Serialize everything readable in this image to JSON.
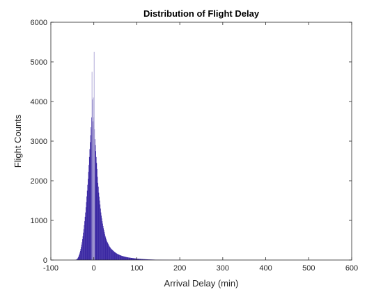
{
  "chart_data": {
    "type": "bar",
    "title": "Distribution of Flight Delay",
    "xlabel": "Arrival Delay (min)",
    "ylabel": "Flight Counts",
    "xlim": [
      -100,
      600
    ],
    "ylim": [
      0,
      6000
    ],
    "xticks": [
      -100,
      0,
      100,
      200,
      300,
      400,
      500,
      600
    ],
    "yticks": [
      0,
      1000,
      2000,
      3000,
      4000,
      5000,
      6000
    ],
    "grid": false,
    "colors": {
      "fill": "#3b28a3",
      "edge": "#4a3aa8",
      "spike": "#b9b3dc",
      "axis": "#262626"
    },
    "bin_width": 1,
    "series": [
      {
        "bins": [
          [
            -45,
            2
          ],
          [
            -42,
            8
          ],
          [
            -40,
            20
          ],
          [
            -38,
            45
          ],
          [
            -36,
            90
          ],
          [
            -34,
            150
          ],
          [
            -32,
            230
          ],
          [
            -30,
            330
          ],
          [
            -28,
            450
          ],
          [
            -26,
            600
          ],
          [
            -24,
            780
          ],
          [
            -22,
            980
          ],
          [
            -20,
            1200
          ],
          [
            -18,
            1460
          ],
          [
            -16,
            1750
          ],
          [
            -14,
            2050
          ],
          [
            -12,
            2400
          ],
          [
            -10,
            2800
          ],
          [
            -8,
            3150
          ],
          [
            -7,
            3350
          ],
          [
            -6,
            3600
          ],
          [
            -5,
            3300
          ],
          [
            -4,
            4050
          ],
          [
            -3,
            3500
          ],
          [
            -2,
            3950
          ],
          [
            -1,
            3600
          ],
          [
            0,
            3400
          ],
          [
            1,
            3300
          ],
          [
            2,
            3050
          ],
          [
            3,
            2900
          ],
          [
            4,
            2750
          ],
          [
            5,
            2600
          ],
          [
            6,
            2450
          ],
          [
            7,
            2300
          ],
          [
            8,
            2100
          ],
          [
            9,
            1950
          ],
          [
            10,
            1850
          ],
          [
            11,
            1700
          ],
          [
            12,
            1600
          ],
          [
            13,
            1500
          ],
          [
            14,
            1400
          ],
          [
            15,
            1300
          ],
          [
            16,
            1200
          ],
          [
            17,
            1120
          ],
          [
            18,
            1050
          ],
          [
            19,
            980
          ],
          [
            20,
            920
          ],
          [
            21,
            860
          ],
          [
            22,
            800
          ],
          [
            23,
            750
          ],
          [
            24,
            700
          ],
          [
            25,
            650
          ],
          [
            26,
            610
          ],
          [
            27,
            570
          ],
          [
            28,
            530
          ],
          [
            29,
            500
          ],
          [
            30,
            470
          ],
          [
            32,
            430
          ],
          [
            34,
            380
          ],
          [
            36,
            340
          ],
          [
            38,
            310
          ],
          [
            40,
            280
          ],
          [
            42,
            260
          ],
          [
            44,
            240
          ],
          [
            46,
            220
          ],
          [
            48,
            200
          ],
          [
            50,
            185
          ],
          [
            52,
            170
          ],
          [
            55,
            150
          ],
          [
            58,
            135
          ],
          [
            61,
            120
          ],
          [
            64,
            108
          ],
          [
            67,
            97
          ],
          [
            70,
            88
          ],
          [
            73,
            80
          ],
          [
            76,
            72
          ],
          [
            80,
            64
          ],
          [
            85,
            56
          ],
          [
            90,
            48
          ],
          [
            95,
            42
          ],
          [
            100,
            36
          ],
          [
            105,
            31
          ],
          [
            110,
            27
          ],
          [
            115,
            23
          ],
          [
            120,
            20
          ],
          [
            125,
            17
          ],
          [
            130,
            14
          ],
          [
            135,
            12
          ],
          [
            140,
            10
          ],
          [
            145,
            8
          ],
          [
            150,
            7
          ],
          [
            160,
            5
          ],
          [
            170,
            4
          ],
          [
            180,
            3
          ],
          [
            190,
            2
          ],
          [
            200,
            2
          ]
        ],
        "spikes": [
          [
            -5,
            4750
          ],
          [
            0,
            5250
          ],
          [
            -2,
            4100
          ]
        ]
      }
    ]
  }
}
